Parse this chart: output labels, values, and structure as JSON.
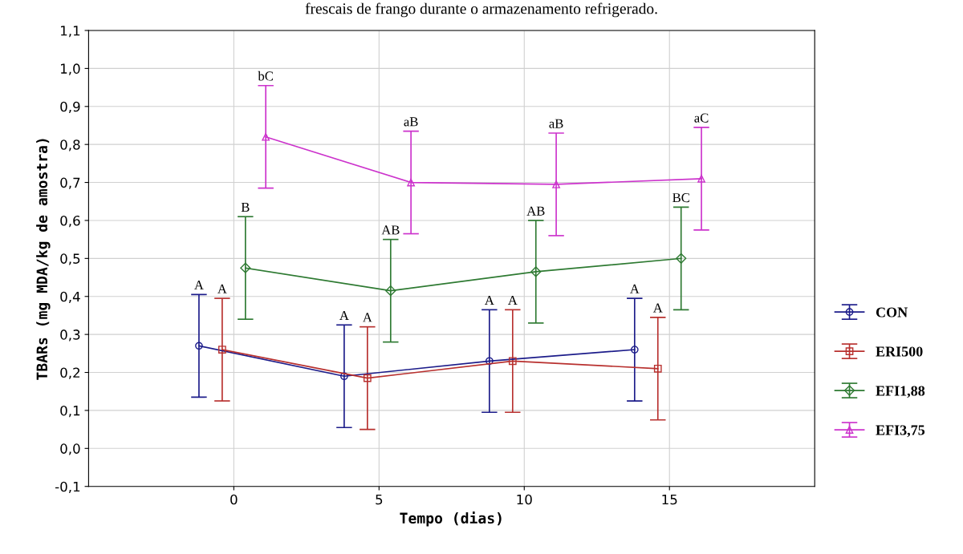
{
  "chart_data": {
    "type": "line",
    "title": "frescais de frango durante o armazenamento refrigerado.",
    "xlabel": "Tempo (dias)",
    "ylabel": "TBARs (mg MDA/kg de amostra)",
    "xlim": [
      -5,
      20
    ],
    "xticks": [
      0,
      5,
      10,
      15
    ],
    "ylim": [
      -0.1,
      1.1
    ],
    "yticks": [
      {
        "value": -0.1,
        "label": "-0,1"
      },
      {
        "value": 0.0,
        "label": "0,0"
      },
      {
        "value": 0.1,
        "label": "0,1"
      },
      {
        "value": 0.2,
        "label": "0,2"
      },
      {
        "value": 0.3,
        "label": "0,3"
      },
      {
        "value": 0.4,
        "label": "0,4"
      },
      {
        "value": 0.5,
        "label": "0,5"
      },
      {
        "value": 0.6,
        "label": "0,6"
      },
      {
        "value": 0.7,
        "label": "0,7"
      },
      {
        "value": 0.8,
        "label": "0,8"
      },
      {
        "value": 0.9,
        "label": "0,9"
      },
      {
        "value": 1.0,
        "label": "1,0"
      },
      {
        "value": 1.1,
        "label": "1,1"
      }
    ],
    "grid": true,
    "legend": "right",
    "series": [
      {
        "name": "CON",
        "color": "#1c1c8a",
        "marker": "circle",
        "x": [
          -1.2,
          3.8,
          8.8,
          13.8
        ],
        "values": [
          0.27,
          0.19,
          0.23,
          0.26
        ],
        "errors": [
          0.135,
          0.135,
          0.135,
          0.135
        ]
      },
      {
        "name": "ERI500",
        "color": "#b8302e",
        "marker": "square",
        "x": [
          -0.4,
          4.6,
          9.6,
          14.6
        ],
        "values": [
          0.26,
          0.185,
          0.23,
          0.21
        ],
        "errors": [
          0.135,
          0.135,
          0.135,
          0.135
        ]
      },
      {
        "name": "EFI1,88",
        "color": "#2e7a32",
        "marker": "diamond",
        "x": [
          0.4,
          5.4,
          10.4,
          15.4
        ],
        "values": [
          0.475,
          0.415,
          0.465,
          0.5
        ],
        "errors": [
          0.135,
          0.135,
          0.135,
          0.135
        ]
      },
      {
        "name": "EFI3,75",
        "color": "#cc33cc",
        "marker": "triangle",
        "x": [
          1.1,
          6.1,
          11.1,
          16.1
        ],
        "values": [
          0.82,
          0.7,
          0.695,
          0.71
        ],
        "errors": [
          0.135,
          0.135,
          0.135,
          0.135
        ]
      }
    ],
    "annotations": [
      {
        "text": "A",
        "x": -1.2,
        "y": 0.405
      },
      {
        "text": "A",
        "x": 3.8,
        "y": 0.325
      },
      {
        "text": "A",
        "x": 8.8,
        "y": 0.365
      },
      {
        "text": "A",
        "x": 13.8,
        "y": 0.395
      },
      {
        "text": "A",
        "x": -0.4,
        "y": 0.395
      },
      {
        "text": "A",
        "x": 4.6,
        "y": 0.32
      },
      {
        "text": "A",
        "x": 9.6,
        "y": 0.365
      },
      {
        "text": "A",
        "x": 14.6,
        "y": 0.345
      },
      {
        "text": "B",
        "x": 0.4,
        "y": 0.61
      },
      {
        "text": "AB",
        "x": 5.4,
        "y": 0.55
      },
      {
        "text": "AB",
        "x": 10.4,
        "y": 0.6
      },
      {
        "text": "BC",
        "x": 15.4,
        "y": 0.635
      },
      {
        "text": "bC",
        "x": 1.1,
        "y": 0.955
      },
      {
        "text": "aB",
        "x": 6.1,
        "y": 0.835
      },
      {
        "text": "aB",
        "x": 11.1,
        "y": 0.83
      },
      {
        "text": "aC",
        "x": 16.1,
        "y": 0.845
      }
    ]
  }
}
